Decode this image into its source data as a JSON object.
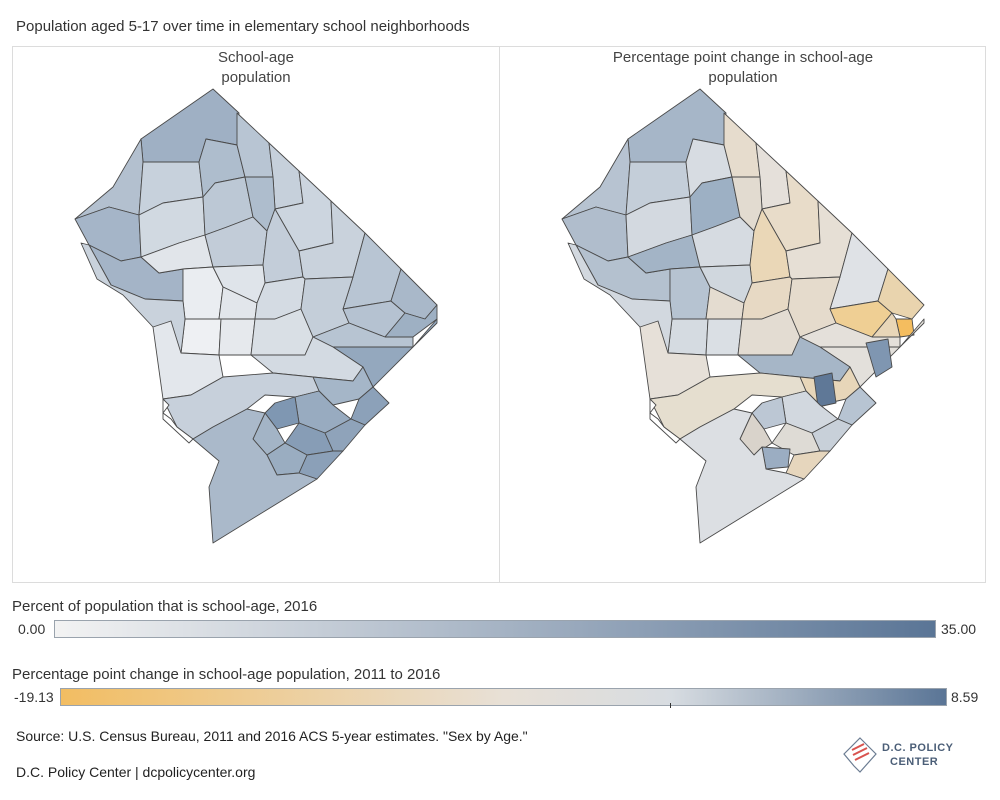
{
  "title": "Population aged 5-17 over time in elementary school neighborhoods",
  "panels": {
    "left_title_line1": "School-age",
    "left_title_line2": "population",
    "right_title_line1": "Percentage point change in school-age",
    "right_title_line2": "population"
  },
  "legend_1": {
    "label": "Percent of population that is school-age, 2016",
    "min_label": "0.00",
    "max_label": "35.00",
    "color_low": "#f3f3f3",
    "color_high": "#5a7596"
  },
  "legend_2": {
    "label": "Percentage point change in school-age population, 2011 to 2016",
    "min_label": "-19.13",
    "max_label": "8.59",
    "color_low": "#f2bd62",
    "color_mid": "#e8e0d6",
    "color_zero": "#d7dce1",
    "color_high": "#5a7596"
  },
  "source": "Source: U.S. Census Bureau, 2011 and 2016 ACS 5-year estimates. \"Sex by Age.\"",
  "credit": "D.C. Policy Center | dcpolicycenter.org",
  "logo": {
    "line1": "D.C. POLICY",
    "line2": "CENTER",
    "icon": "dc-flag-map-icon"
  }
}
